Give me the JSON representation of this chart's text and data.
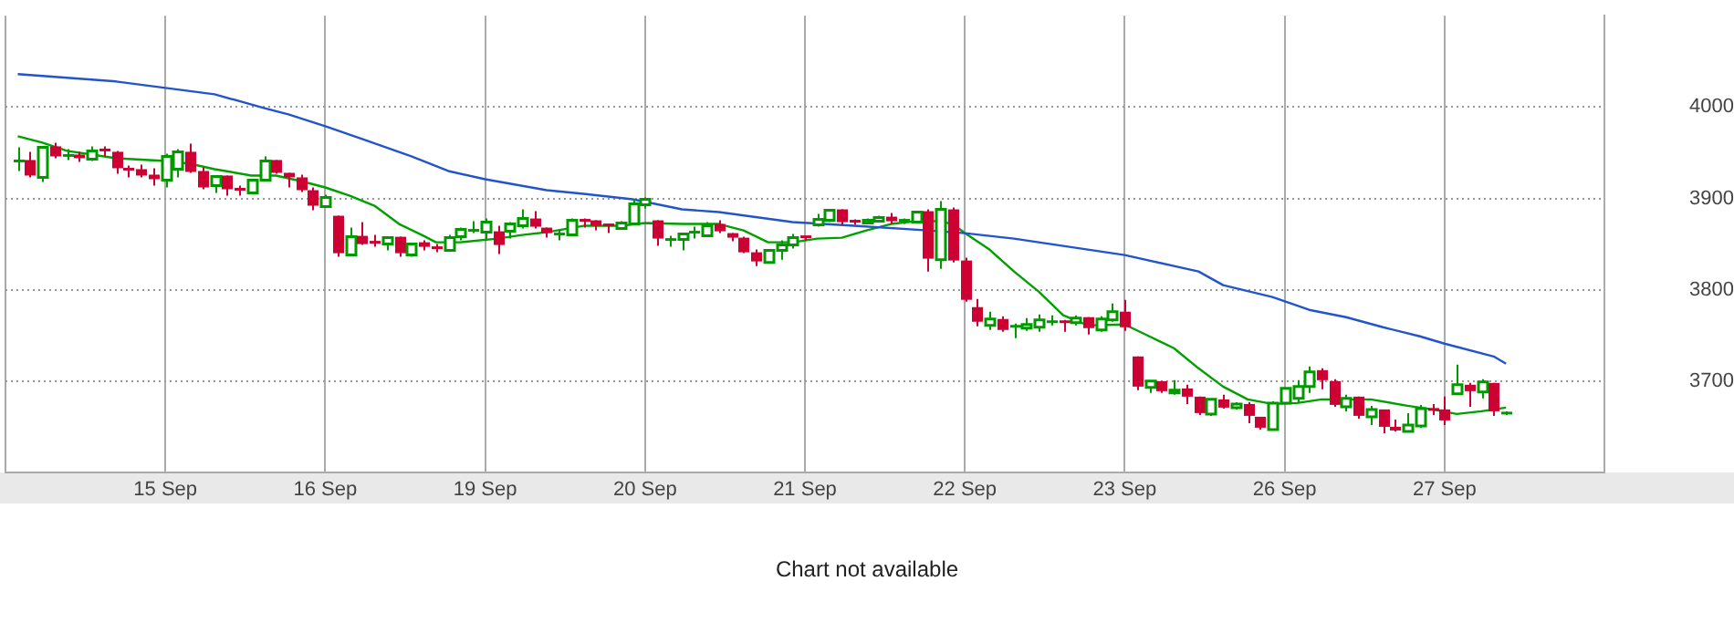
{
  "chart_data": {
    "type": "candlestick",
    "categories": [
      null,
      null,
      null,
      null,
      null,
      null,
      null,
      null,
      null,
      null,
      null,
      null,
      null,
      "15 Sep",
      null,
      null,
      null,
      null,
      null,
      null,
      null,
      null,
      null,
      null,
      null,
      null,
      "16 Sep",
      null,
      null,
      null,
      null,
      null,
      null,
      null,
      null,
      null,
      null,
      null,
      null,
      "19 Sep",
      null,
      null,
      null,
      null,
      null,
      null,
      null,
      null,
      null,
      null,
      null,
      null,
      "20 Sep",
      null,
      null,
      null,
      null,
      null,
      null,
      null,
      null,
      null,
      null,
      null,
      null,
      "21 Sep",
      null,
      null,
      null,
      null,
      null,
      null,
      null,
      null,
      null,
      null,
      null,
      null,
      "22 Sep",
      null,
      null,
      null,
      null,
      null,
      null,
      null,
      null,
      null,
      null,
      null,
      null,
      "23 Sep",
      null,
      null,
      null,
      null,
      null,
      null,
      null,
      null,
      null,
      null,
      null,
      null,
      "26 Sep",
      null,
      null,
      null,
      null,
      null,
      null,
      null,
      null,
      null,
      null,
      null,
      null,
      "27 Sep",
      null,
      null,
      null,
      null,
      null,
      null,
      null,
      null,
      null,
      null,
      null,
      null,
      null
    ],
    "ohlc": [
      null,
      [
        3941,
        3956,
        3930,
        3941
      ],
      [
        3942,
        3951,
        3923,
        3925
      ],
      [
        3923,
        3957,
        3918,
        3956
      ],
      [
        3957,
        3961,
        3944,
        3946
      ],
      [
        3945,
        3954,
        3942,
        3947
      ],
      [
        3948,
        3951,
        3940,
        3944
      ],
      [
        3943,
        3957,
        3941,
        3952
      ],
      [
        3953,
        3957,
        3946,
        3951
      ],
      [
        3951,
        3952,
        3927,
        3933
      ],
      [
        3932,
        3936,
        3923,
        3930
      ],
      [
        3932,
        3937,
        3923,
        3925
      ],
      [
        3926,
        3933,
        3914,
        3921
      ],
      [
        3920,
        3949,
        3912,
        3946
      ],
      [
        3932,
        3954,
        3923,
        3951
      ],
      [
        3951,
        3960,
        3928,
        3929
      ],
      [
        3930,
        3934,
        3910,
        3912
      ],
      [
        3914,
        3925,
        3906,
        3924
      ],
      [
        3925,
        3925,
        3903,
        3910
      ],
      [
        3910,
        3914,
        3903,
        3908
      ],
      [
        3906,
        3920,
        3906,
        3920
      ],
      [
        3920,
        3946,
        3919,
        3941
      ],
      [
        3942,
        3942,
        3927,
        3928
      ],
      [
        3928,
        3928,
        3912,
        3923
      ],
      [
        3923,
        3926,
        3907,
        3909
      ],
      [
        3909,
        3912,
        3887,
        3892
      ],
      [
        3891,
        3904,
        3890,
        3901
      ],
      [
        3881,
        3881,
        3836,
        3840
      ],
      [
        3838,
        3868,
        3838,
        3858
      ],
      [
        3859,
        3874,
        3849,
        3850
      ],
      [
        3852,
        3860,
        3847,
        3851
      ],
      [
        3850,
        3858,
        3843,
        3857
      ],
      [
        3858,
        3858,
        3836,
        3840
      ],
      [
        3838,
        3850,
        3836,
        3850
      ],
      [
        3852,
        3854,
        3843,
        3847
      ],
      [
        3846,
        3850,
        3841,
        3845
      ],
      [
        3843,
        3860,
        3843,
        3857
      ],
      [
        3858,
        3868,
        3854,
        3866
      ],
      [
        3864,
        3875,
        3862,
        3865
      ],
      [
        3863,
        3878,
        3854,
        3874
      ],
      [
        3864,
        3870,
        3839,
        3849
      ],
      [
        3864,
        3874,
        3856,
        3872
      ],
      [
        3870,
        3888,
        3867,
        3878
      ],
      [
        3878,
        3886,
        3867,
        3869
      ],
      [
        3868,
        3868,
        3857,
        3862
      ],
      [
        3860,
        3865,
        3854,
        3861
      ],
      [
        3860,
        3878,
        3860,
        3876
      ],
      [
        3876,
        3878,
        3868,
        3875
      ],
      [
        3876,
        3876,
        3865,
        3870
      ],
      [
        3871,
        3872,
        3862,
        3870
      ],
      [
        3867,
        3875,
        3866,
        3873
      ],
      [
        3872,
        3899,
        3872,
        3894
      ],
      [
        3893,
        3901,
        3889,
        3899
      ],
      [
        3876,
        3876,
        3848,
        3856
      ],
      [
        3854,
        3859,
        3847,
        3855
      ],
      [
        3855,
        3861,
        3843,
        3861
      ],
      [
        3862,
        3869,
        3856,
        3863
      ],
      [
        3859,
        3874,
        3859,
        3870
      ],
      [
        3872,
        3876,
        3862,
        3864
      ],
      [
        3862,
        3862,
        3853,
        3857
      ],
      [
        3857,
        3858,
        3840,
        3841
      ],
      [
        3841,
        3844,
        3826,
        3831
      ],
      [
        3830,
        3843,
        3829,
        3843
      ],
      [
        3843,
        3854,
        3833,
        3849
      ],
      [
        3849,
        3861,
        3845,
        3857
      ],
      [
        3858,
        3858,
        3854,
        3856
      ],
      [
        3871,
        3883,
        3869,
        3877
      ],
      [
        3876,
        3887,
        3874,
        3887
      ],
      [
        3888,
        3888,
        3871,
        3874
      ],
      [
        3875,
        3877,
        3871,
        3874
      ],
      [
        3873,
        3878,
        3872,
        3876
      ],
      [
        3875,
        3881,
        3874,
        3879
      ],
      [
        3880,
        3884,
        3872,
        3875
      ],
      [
        3874,
        3878,
        3872,
        3876
      ],
      [
        3874,
        3885,
        3874,
        3885
      ],
      [
        3886,
        3888,
        3820,
        3834
      ],
      [
        3833,
        3897,
        3823,
        3888
      ],
      [
        3888,
        3890,
        3830,
        3832
      ],
      [
        3832,
        3835,
        3787,
        3789
      ],
      [
        3781,
        3790,
        3760,
        3765
      ],
      [
        3761,
        3776,
        3756,
        3768
      ],
      [
        3768,
        3771,
        3754,
        3756
      ],
      [
        3759,
        3763,
        3747,
        3760
      ],
      [
        3758,
        3769,
        3755,
        3762
      ],
      [
        3759,
        3773,
        3754,
        3767
      ],
      [
        3764,
        3772,
        3761,
        3765
      ],
      [
        3765,
        3767,
        3754,
        3764
      ],
      [
        3764,
        3772,
        3761,
        3769
      ],
      [
        3770,
        3770,
        3751,
        3758
      ],
      [
        3756,
        3771,
        3754,
        3768
      ],
      [
        3767,
        3785,
        3765,
        3776
      ],
      [
        3776,
        3789,
        3755,
        3759
      ],
      [
        3727,
        3727,
        3690,
        3694
      ],
      [
        3693,
        3700,
        3687,
        3700
      ],
      [
        3700,
        3700,
        3687,
        3689
      ],
      [
        3687,
        3701,
        3685,
        3690
      ],
      [
        3692,
        3696,
        3675,
        3683
      ],
      [
        3683,
        3683,
        3663,
        3665
      ],
      [
        3664,
        3680,
        3662,
        3680
      ],
      [
        3680,
        3685,
        3670,
        3671
      ],
      [
        3671,
        3677,
        3669,
        3675
      ],
      [
        3675,
        3677,
        3654,
        3662
      ],
      [
        3661,
        3661,
        3647,
        3649
      ],
      [
        3647,
        3678,
        3647,
        3676
      ],
      [
        3676,
        3692,
        3676,
        3692
      ],
      [
        3681,
        3701,
        3677,
        3694
      ],
      [
        3694,
        3716,
        3687,
        3710
      ],
      [
        3712,
        3714,
        3691,
        3701
      ],
      [
        3700,
        3702,
        3672,
        3674
      ],
      [
        3672,
        3685,
        3667,
        3681
      ],
      [
        3683,
        3683,
        3659,
        3662
      ],
      [
        3661,
        3673,
        3652,
        3669
      ],
      [
        3669,
        3669,
        3643,
        3650
      ],
      [
        3650,
        3658,
        3645,
        3646
      ],
      [
        3645,
        3665,
        3645,
        3652
      ],
      [
        3651,
        3674,
        3649,
        3670
      ],
      [
        3669,
        3675,
        3663,
        3667
      ],
      [
        3669,
        3683,
        3652,
        3657
      ],
      [
        3686,
        3718,
        3685,
        3696
      ],
      [
        3696,
        3698,
        3672,
        3689
      ],
      [
        3688,
        3702,
        3681,
        3699
      ],
      [
        3698,
        3698,
        3662,
        3667
      ],
      [
        3665,
        3667,
        3663,
        3665
      ],
      null,
      null,
      null,
      null,
      null,
      null,
      null,
      null
    ],
    "series": [
      {
        "type": "line",
        "color": "#2255cc",
        "values": [
          null,
          4036,
          null,
          null,
          null,
          4032,
          null,
          null,
          null,
          4028,
          null,
          null,
          null,
          4021,
          null,
          null,
          null,
          4014,
          null,
          null,
          null,
          3999,
          null,
          3992,
          null,
          null,
          3979,
          null,
          null,
          3965,
          null,
          null,
          null,
          3946,
          null,
          null,
          3930,
          null,
          null,
          3921,
          null,
          null,
          null,
          null,
          3909,
          null,
          null,
          3905,
          null,
          null,
          null,
          3899,
          null,
          null,
          null,
          3888,
          null,
          null,
          3885,
          null,
          null,
          null,
          null,
          null,
          3874,
          null,
          null,
          null,
          null,
          3870,
          null,
          null,
          null,
          null,
          null,
          3865,
          null,
          null,
          3862,
          null,
          null,
          null,
          3856,
          null,
          null,
          3850,
          null,
          null,
          null,
          null,
          null,
          3838,
          null,
          null,
          null,
          null,
          null,
          3820,
          null,
          3805,
          null,
          null,
          null,
          3792,
          null,
          null,
          3778,
          null,
          null,
          3770,
          null,
          null,
          3759,
          null,
          null,
          3749,
          null,
          3741,
          null,
          null,
          null,
          3727,
          3719,
          null,
          null,
          null,
          null,
          null,
          null,
          null,
          null
        ]
      },
      {
        "type": "line",
        "color": "#00a000",
        "values": [
          null,
          3968,
          null,
          3961,
          null,
          3952,
          null,
          null,
          null,
          3944,
          null,
          null,
          null,
          3941,
          null,
          3938,
          null,
          3932,
          null,
          null,
          3925,
          null,
          3925,
          null,
          3919,
          null,
          3912,
          null,
          3903,
          null,
          3892,
          null,
          3872,
          null,
          3859,
          3852,
          null,
          3852,
          null,
          null,
          3856,
          null,
          3860,
          null,
          3863,
          null,
          null,
          3870,
          null,
          null,
          3870,
          null,
          3873,
          null,
          null,
          3872,
          null,
          null,
          3872,
          null,
          3865,
          null,
          3852,
          null,
          3852,
          null,
          3856,
          null,
          3857,
          null,
          3865,
          null,
          3872,
          null,
          3875,
          null,
          3875,
          3872,
          3862,
          null,
          3844,
          null,
          3820,
          null,
          3798,
          null,
          3772,
          null,
          3761,
          null,
          null,
          3762,
          null,
          3749,
          null,
          3736,
          null,
          3714,
          null,
          3694,
          null,
          3680,
          null,
          3675,
          null,
          3676,
          null,
          3680,
          null,
          null,
          null,
          3680,
          null,
          null,
          3673,
          null,
          3669,
          null,
          3664,
          null,
          3667,
          null,
          3671,
          null,
          null,
          null,
          null,
          null,
          null,
          null,
          null
        ]
      }
    ],
    "ylim": [
      3600,
      4100
    ],
    "yticks": [
      3700,
      3800,
      3900,
      4000
    ],
    "grid": true,
    "marker": "none",
    "annotations": [
      "Chart not available"
    ]
  }
}
